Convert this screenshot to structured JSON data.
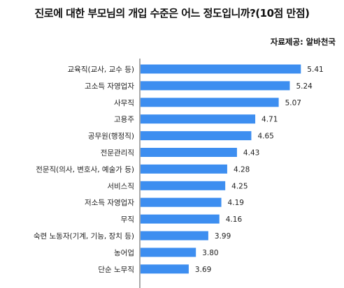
{
  "title": "진로에 대한 부모님의 개입 수준은 어느 정도입니까?(10점  만점)",
  "source": "자료제공: 알바천국",
  "chart_data": {
    "type": "bar",
    "orientation": "horizontal",
    "title": "진로에 대한 부모님의 개입 수준은 어느 정도입니까?(10점  만점)",
    "categories": [
      "교육직(교사, 교수 등)",
      "고소득 자영업자",
      "사무직",
      "고용주",
      "공무원(행정직)",
      "전문관리직",
      "전문직(의사, 변호사, 예술가 등)",
      "서비스직",
      "저소득 자영업자",
      "무직",
      "숙련 노동자(기계, 기능, 장치 등)",
      "농어업",
      "단순 노무직"
    ],
    "values": [
      5.41,
      5.24,
      5.07,
      4.71,
      4.65,
      4.43,
      4.28,
      4.25,
      4.19,
      4.16,
      3.99,
      3.8,
      3.69
    ],
    "value_labels": [
      "5.41",
      "5.24",
      "5.07",
      "4.71",
      "4.65",
      "4.43",
      "4.28",
      "4.25",
      "4.19",
      "4.16",
      "3.99",
      "3.80",
      "3.69"
    ],
    "xlim": [
      2.94,
      5.9
    ],
    "grid": false,
    "bar_color": "#3d8ef0"
  }
}
